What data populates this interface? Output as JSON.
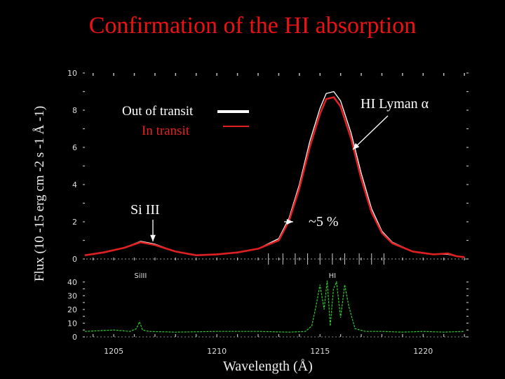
{
  "slide": {
    "title": "Confirmation of the HI absorption",
    "title_color": "#dd1111",
    "background": "#000000"
  },
  "annotations": {
    "out_of_transit": "Out of transit",
    "in_transit": "In transit",
    "si_iii": "Si III",
    "hi_lyman_prefix": "HI Lyman ",
    "hi_lyman_symbol": "α",
    "five_percent": "~5 %"
  },
  "chart_data": [
    {
      "type": "line",
      "panel": "top",
      "ylabel": "Flux (10 -15 erg cm -2 s -1 Å -1)",
      "ylim": [
        0,
        10
      ],
      "y_ticks": [
        "0",
        "2",
        "4",
        "6",
        "8",
        "10"
      ],
      "x": [
        1203.6,
        1204.5,
        1205.5,
        1206.3,
        1207.0,
        1208.0,
        1209.0,
        1210.0,
        1211.0,
        1212.0,
        1213.0,
        1213.5,
        1214.0,
        1214.5,
        1215.0,
        1215.3,
        1215.67,
        1216.0,
        1216.5,
        1217.0,
        1217.5,
        1218.0,
        1218.5,
        1219.5,
        1220.5,
        1221.2,
        1221.6,
        1222.0
      ],
      "series": [
        {
          "name": "Out of transit",
          "color": "#ffffff",
          "y": [
            0.2,
            0.35,
            0.6,
            0.95,
            0.8,
            0.4,
            0.2,
            0.25,
            0.35,
            0.55,
            1.1,
            2.2,
            4.0,
            6.3,
            8.1,
            8.9,
            9.0,
            8.5,
            6.8,
            4.6,
            2.7,
            1.5,
            0.9,
            0.4,
            0.25,
            0.25,
            0.15,
            0.1
          ]
        },
        {
          "name": "In transit",
          "color": "#e02020",
          "y": [
            0.2,
            0.35,
            0.6,
            0.9,
            0.75,
            0.4,
            0.2,
            0.25,
            0.35,
            0.55,
            1.0,
            2.05,
            3.8,
            6.0,
            7.8,
            8.6,
            8.7,
            8.2,
            6.5,
            4.3,
            2.5,
            1.4,
            0.85,
            0.4,
            0.25,
            0.3,
            0.15,
            0.1
          ]
        }
      ]
    },
    {
      "type": "line",
      "panel": "bottom",
      "xlabel": "Wavelength (Å)",
      "xlim": [
        1203.5,
        1222.2
      ],
      "ylim": [
        0,
        45
      ],
      "x_ticks": [
        "1205",
        "1210",
        "1215",
        "1220"
      ],
      "y_ticks": [
        "0",
        "10",
        "20",
        "30",
        "40"
      ],
      "line_labels": [
        "SiIII",
        "HI"
      ],
      "x": [
        1203.6,
        1205.0,
        1205.8,
        1206.1,
        1206.25,
        1206.4,
        1206.7,
        1208.0,
        1210.0,
        1212.0,
        1213.5,
        1214.3,
        1214.6,
        1214.8,
        1215.0,
        1215.2,
        1215.35,
        1215.5,
        1215.65,
        1215.8,
        1216.0,
        1216.2,
        1216.4,
        1216.7,
        1217.2,
        1218.0,
        1219.0,
        1220.0,
        1221.0,
        1222.0
      ],
      "series": [
        {
          "name": "",
          "color": "#2ecc2e",
          "y": [
            4,
            5,
            4,
            6,
            11,
            5,
            4,
            3.5,
            4,
            4,
            3.5,
            4,
            8,
            22,
            38,
            20,
            41,
            8,
            35,
            40,
            14,
            38,
            22,
            6,
            4,
            4,
            3.5,
            4,
            3.5,
            4
          ]
        }
      ]
    }
  ]
}
